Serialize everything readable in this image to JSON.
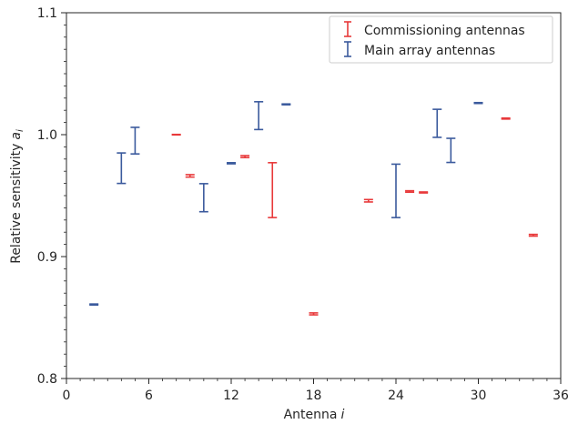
{
  "chart_data": {
    "type": "scatter",
    "xlabel": "Antenna",
    "xlabel_var": "i",
    "ylabel": "Relative sensitivity",
    "ylabel_var": "a",
    "ylabel_sub": "i",
    "xlim": [
      0,
      36
    ],
    "ylim": [
      0.8,
      1.1
    ],
    "xticks": [
      0,
      6,
      12,
      18,
      24,
      30,
      36
    ],
    "yticks": [
      0.8,
      0.9,
      1.0,
      1.1
    ],
    "xtick_labels": [
      "0",
      "6",
      "12",
      "18",
      "24",
      "30",
      "36"
    ],
    "ytick_labels": [
      "0.8",
      "0.9",
      "1.0",
      "1.1"
    ],
    "grid": false,
    "legend_position": "top-right",
    "series": [
      {
        "name": "Commissioning antennas",
        "color": "#e8393a",
        "points": [
          {
            "x": 8,
            "low": 0.9998,
            "high": 1.0002
          },
          {
            "x": 9,
            "low": 0.9652,
            "high": 0.9672
          },
          {
            "x": 13,
            "low": 0.9812,
            "high": 0.9828
          },
          {
            "x": 15,
            "low": 0.932,
            "high": 0.977
          },
          {
            "x": 18,
            "low": 0.8522,
            "high": 0.8538
          },
          {
            "x": 22,
            "low": 0.9448,
            "high": 0.9468
          },
          {
            "x": 25,
            "low": 0.9528,
            "high": 0.954
          },
          {
            "x": 26,
            "low": 0.9522,
            "high": 0.953
          },
          {
            "x": 32,
            "low": 1.0128,
            "high": 1.0136
          },
          {
            "x": 34,
            "low": 0.9168,
            "high": 0.9182
          }
        ]
      },
      {
        "name": "Main array antennas",
        "color": "#3b5a9d",
        "points": [
          {
            "x": 2,
            "low": 0.8603,
            "high": 0.8611
          },
          {
            "x": 4,
            "low": 0.96,
            "high": 0.985
          },
          {
            "x": 5,
            "low": 0.9842,
            "high": 1.006
          },
          {
            "x": 10,
            "low": 0.9368,
            "high": 0.9598
          },
          {
            "x": 12,
            "low": 0.9761,
            "high": 0.977
          },
          {
            "x": 14,
            "low": 1.0042,
            "high": 1.027
          },
          {
            "x": 16,
            "low": 1.0245,
            "high": 1.0252
          },
          {
            "x": 24,
            "low": 0.932,
            "high": 0.9758
          },
          {
            "x": 27,
            "low": 0.9978,
            "high": 1.0208
          },
          {
            "x": 28,
            "low": 0.9772,
            "high": 0.997
          },
          {
            "x": 30,
            "low": 1.0256,
            "high": 1.0263
          }
        ]
      }
    ]
  }
}
